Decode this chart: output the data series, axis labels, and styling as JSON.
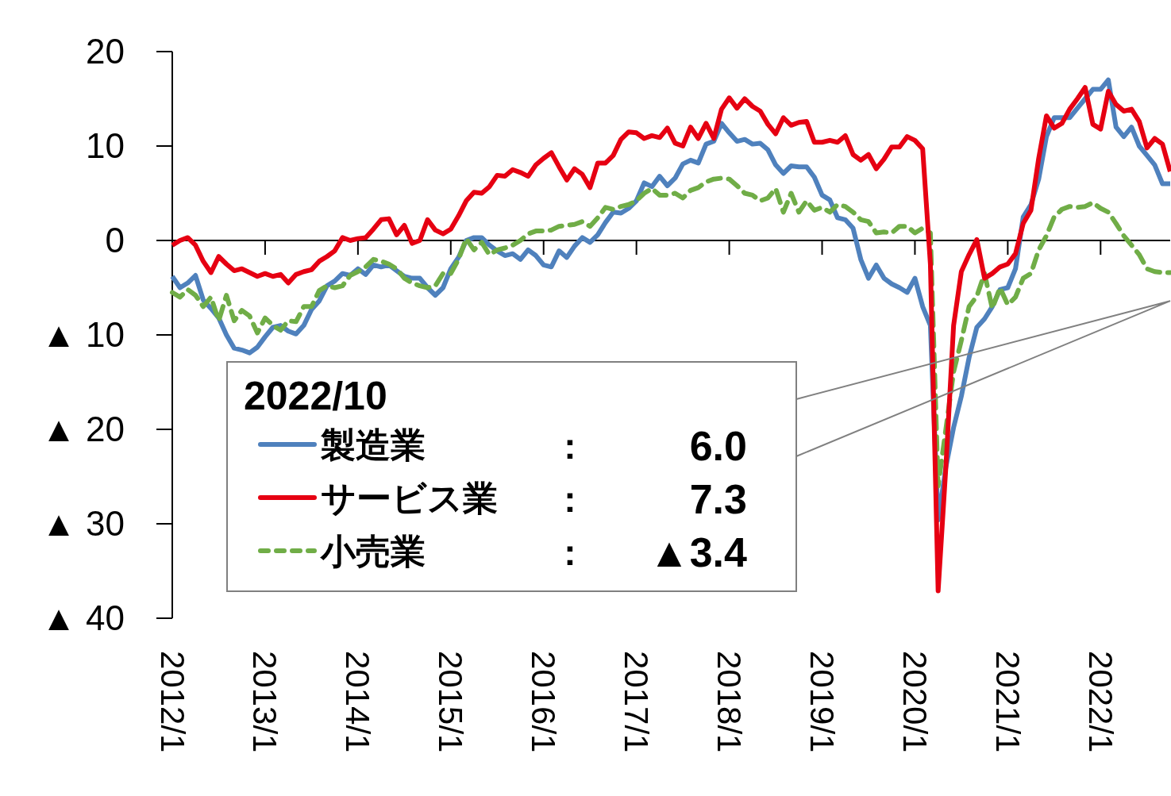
{
  "chart_data": {
    "type": "line",
    "x": [
      "2012-01",
      "2012-02",
      "2012-03",
      "2012-04",
      "2012-05",
      "2012-06",
      "2012-07",
      "2012-08",
      "2012-09",
      "2012-10",
      "2012-11",
      "2012-12",
      "2013-01",
      "2013-02",
      "2013-03",
      "2013-04",
      "2013-05",
      "2013-06",
      "2013-07",
      "2013-08",
      "2013-09",
      "2013-10",
      "2013-11",
      "2013-12",
      "2014-01",
      "2014-02",
      "2014-03",
      "2014-04",
      "2014-05",
      "2014-06",
      "2014-07",
      "2014-08",
      "2014-09",
      "2014-10",
      "2014-11",
      "2014-12",
      "2015-01",
      "2015-02",
      "2015-03",
      "2015-04",
      "2015-05",
      "2015-06",
      "2015-07",
      "2015-08",
      "2015-09",
      "2015-10",
      "2015-11",
      "2015-12",
      "2016-01",
      "2016-02",
      "2016-03",
      "2016-04",
      "2016-05",
      "2016-06",
      "2016-07",
      "2016-08",
      "2016-09",
      "2016-10",
      "2016-11",
      "2016-12",
      "2017-01",
      "2017-02",
      "2017-03",
      "2017-04",
      "2017-05",
      "2017-06",
      "2017-07",
      "2017-08",
      "2017-09",
      "2017-10",
      "2017-11",
      "2017-12",
      "2018-01",
      "2018-02",
      "2018-03",
      "2018-04",
      "2018-05",
      "2018-06",
      "2018-07",
      "2018-08",
      "2018-09",
      "2018-10",
      "2018-11",
      "2018-12",
      "2019-01",
      "2019-02",
      "2019-03",
      "2019-04",
      "2019-05",
      "2019-06",
      "2019-07",
      "2019-08",
      "2019-09",
      "2019-10",
      "2019-11",
      "2019-12",
      "2020-01",
      "2020-02",
      "2020-03",
      "2020-04",
      "2020-05",
      "2020-06",
      "2020-07",
      "2020-08",
      "2020-09",
      "2020-10",
      "2020-11",
      "2020-12",
      "2021-01",
      "2021-02",
      "2021-03",
      "2021-04",
      "2021-05",
      "2021-06",
      "2021-07",
      "2021-08",
      "2021-09",
      "2021-10",
      "2021-11",
      "2021-12",
      "2022-01",
      "2022-02",
      "2022-03",
      "2022-04",
      "2022-05",
      "2022-06",
      "2022-07",
      "2022-08",
      "2022-09",
      "2022-10"
    ],
    "series": [
      {
        "name": "製造業",
        "color": "#4f81bd",
        "line_style": "solid",
        "values": [
          -3.8,
          -5.0,
          -4.5,
          -3.7,
          -6.3,
          -7.2,
          -8.2,
          -10.0,
          -11.4,
          -11.6,
          -11.9,
          -11.3,
          -10.2,
          -9.2,
          -9.0,
          -9.6,
          -9.9,
          -9.0,
          -7.3,
          -6.4,
          -4.8,
          -4.3,
          -3.5,
          -3.7,
          -3.0,
          -3.6,
          -2.6,
          -2.8,
          -2.6,
          -3.2,
          -3.8,
          -4.0,
          -4.0,
          -5.0,
          -5.8,
          -5.0,
          -3.0,
          -1.8,
          0.0,
          0.3,
          0.3,
          -0.5,
          -1.1,
          -1.6,
          -1.4,
          -2.0,
          -1.0,
          -1.6,
          -2.6,
          -2.8,
          -1.1,
          -1.8,
          -0.6,
          0.3,
          -0.2,
          0.6,
          1.9,
          3.0,
          2.9,
          3.4,
          4.2,
          6.1,
          5.7,
          6.8,
          5.8,
          6.6,
          8.1,
          8.5,
          8.2,
          10.2,
          10.5,
          12.4,
          11.4,
          10.5,
          10.7,
          10.2,
          10.3,
          9.6,
          8.0,
          7.1,
          7.9,
          7.8,
          7.8,
          6.7,
          4.8,
          4.3,
          2.4,
          2.2,
          1.3,
          -2.0,
          -4.0,
          -2.6,
          -4.0,
          -4.6,
          -5.0,
          -5.5,
          -4.0,
          -7.0,
          -9.0,
          -29.6,
          -24.0,
          -19.8,
          -16.5,
          -12.4,
          -9.2,
          -8.3,
          -7.0,
          -5.2,
          -5.0,
          -3.0,
          2.5,
          3.8,
          6.5,
          11.0,
          13.0,
          13.0,
          13.0,
          14.0,
          15.0,
          16.0,
          16.0,
          17.0,
          12.0,
          11.0,
          12.0,
          10.0,
          9.0,
          8.0,
          6.0,
          6.0
        ]
      },
      {
        "name": "サービス業",
        "color": "#e60012",
        "line_style": "solid",
        "values": [
          -0.5,
          0.0,
          0.3,
          -0.5,
          -2.2,
          -3.4,
          -1.7,
          -2.5,
          -3.2,
          -3.0,
          -3.4,
          -3.8,
          -3.5,
          -3.8,
          -3.6,
          -4.5,
          -3.6,
          -3.3,
          -3.1,
          -2.2,
          -1.7,
          -1.1,
          0.3,
          0.0,
          0.2,
          0.3,
          1.2,
          2.2,
          2.3,
          0.6,
          1.6,
          -0.3,
          0.0,
          2.2,
          1.1,
          0.7,
          1.2,
          2.6,
          4.2,
          5.1,
          5.0,
          5.7,
          6.9,
          6.8,
          7.5,
          7.2,
          6.8,
          8.0,
          8.7,
          9.3,
          7.8,
          6.4,
          7.6,
          7.0,
          5.6,
          8.2,
          8.2,
          9.0,
          10.7,
          11.5,
          11.4,
          10.8,
          11.1,
          10.9,
          11.9,
          10.3,
          10.0,
          12.0,
          10.8,
          12.4,
          10.8,
          13.9,
          15.1,
          14.0,
          15.0,
          14.2,
          13.7,
          12.3,
          11.3,
          13.0,
          12.2,
          12.5,
          12.6,
          10.4,
          10.4,
          10.6,
          10.4,
          11.1,
          9.1,
          8.5,
          9.1,
          7.6,
          8.6,
          9.9,
          9.9,
          11.0,
          10.6,
          9.7,
          -2.5,
          -37.1,
          -24.0,
          -9.0,
          -3.3,
          -1.5,
          0.1,
          -4.0,
          -3.5,
          -2.8,
          -2.5,
          -1.4,
          1.8,
          3.2,
          8.7,
          13.2,
          11.9,
          12.4,
          13.9,
          15.0,
          16.2,
          12.3,
          11.8,
          15.8,
          14.4,
          13.7,
          13.9,
          12.6,
          9.8,
          10.8,
          10.2,
          7.3
        ]
      },
      {
        "name": "小売業",
        "color": "#70ad47",
        "line_style": "dashed",
        "values": [
          -5.5,
          -6.0,
          -5.2,
          -5.8,
          -7.0,
          -6.0,
          -8.5,
          -5.8,
          -8.5,
          -7.4,
          -8.0,
          -9.8,
          -8.2,
          -9.0,
          -9.5,
          -8.5,
          -8.6,
          -7.0,
          -7.0,
          -5.3,
          -4.8,
          -5.0,
          -4.8,
          -3.7,
          -3.3,
          -2.8,
          -2.0,
          -2.2,
          -2.5,
          -3.0,
          -4.0,
          -4.5,
          -4.8,
          -5.0,
          -4.8,
          -3.5,
          -3.5,
          -2.0,
          0.2,
          -1.0,
          -0.2,
          -1.5,
          -1.0,
          -0.8,
          -0.5,
          0.0,
          0.7,
          1.0,
          1.0,
          1.1,
          1.5,
          1.6,
          1.7,
          2.0,
          1.5,
          2.4,
          3.5,
          3.3,
          3.6,
          3.8,
          4.2,
          5.0,
          5.5,
          4.8,
          4.8,
          5.0,
          4.5,
          5.3,
          5.6,
          6.2,
          6.5,
          6.6,
          6.5,
          5.8,
          5.0,
          4.8,
          4.2,
          4.5,
          5.5,
          3.0,
          5.0,
          3.0,
          4.2,
          3.2,
          3.5,
          3.0,
          3.8,
          3.6,
          3.0,
          2.2,
          2.0,
          0.8,
          0.9,
          0.8,
          1.5,
          1.5,
          0.8,
          1.3,
          0.8,
          -26.0,
          -20.0,
          -13.9,
          -10.6,
          -7.0,
          -5.9,
          -3.5,
          -7.2,
          -5.0,
          -6.8,
          -6.0,
          -4.0,
          -3.5,
          -1.0,
          0.5,
          2.5,
          3.3,
          3.6,
          3.5,
          3.6,
          4.0,
          3.4,
          3.0,
          1.8,
          0.5,
          -0.5,
          -1.5,
          -3.0,
          -3.3,
          -3.4,
          -3.4
        ]
      }
    ],
    "xlim": [
      "2012-01",
      "2022-10"
    ],
    "xticks": [
      {
        "value": "2012-01",
        "label": "2012/1"
      },
      {
        "value": "2013-01",
        "label": "2013/1"
      },
      {
        "value": "2014-01",
        "label": "2014/1"
      },
      {
        "value": "2015-01",
        "label": "2015/1"
      },
      {
        "value": "2016-01",
        "label": "2016/1"
      },
      {
        "value": "2017-01",
        "label": "2017/1"
      },
      {
        "value": "2018-01",
        "label": "2018/1"
      },
      {
        "value": "2019-01",
        "label": "2019/1"
      },
      {
        "value": "2020-01",
        "label": "2020/1"
      },
      {
        "value": "2021-01",
        "label": "2021/1"
      },
      {
        "value": "2022-01",
        "label": "2022/1"
      }
    ],
    "ylim": [
      -40,
      20
    ],
    "yticks": [
      20,
      10,
      0,
      {
        "value": -10,
        "label": "▲ 10"
      },
      {
        "value": -20,
        "label": "▲ 20"
      },
      {
        "value": -30,
        "label": "▲ 30"
      },
      {
        "value": -40,
        "label": "▲ 40"
      }
    ],
    "grid": false,
    "ref_lines": [
      {
        "axis": "y",
        "value": 0,
        "color": "#000000"
      }
    ],
    "legend": "bottom left",
    "legend_title": "2022/10",
    "annotations": [
      ":",
      "6.0",
      ":",
      "7.3",
      ":",
      "▲3.4"
    ]
  }
}
